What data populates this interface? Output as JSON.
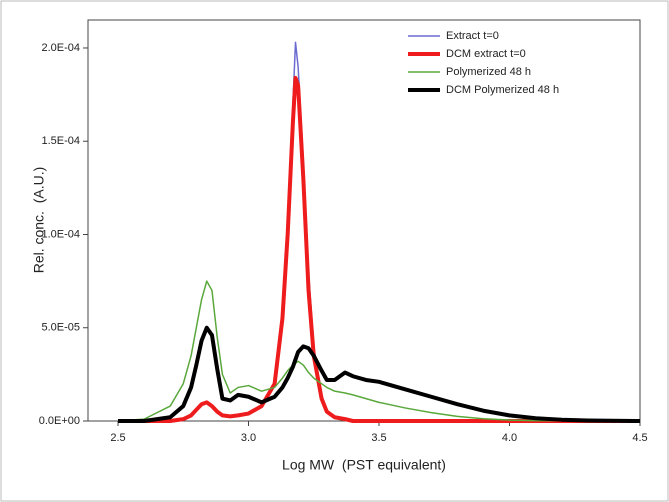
{
  "chart_data": {
    "type": "line",
    "x_label": "Log MW  (PST equivalent)",
    "y_label": "Rel. conc.  (A.U.)",
    "xlim": [
      2.385,
      4.5
    ],
    "ylim": [
      0,
      0.000215
    ],
    "xticks": [
      2.5,
      {
        "value": 3,
        "label": "3.0"
      },
      3.5,
      {
        "value": 4,
        "label": "4.0"
      },
      4.5
    ],
    "yticks": [
      {
        "value": 0,
        "label": "0.0E+00"
      },
      {
        "value": 5e-05,
        "label": "5.0E-05"
      },
      {
        "value": 0.0001,
        "label": "1.0E-04"
      },
      {
        "value": 0.00015,
        "label": "1.5E-04"
      },
      {
        "value": 0.0002,
        "label": "2.0E-04"
      }
    ],
    "legend": "upper-right",
    "x": [
      2.5,
      2.6,
      2.7,
      2.75,
      2.78,
      2.8,
      2.82,
      2.84,
      2.86,
      2.88,
      2.9,
      2.93,
      2.96,
      3.0,
      3.05,
      3.1,
      3.13,
      3.15,
      3.17,
      3.18,
      3.19,
      3.21,
      3.23,
      3.25,
      3.28,
      3.3,
      3.33,
      3.37,
      3.4,
      3.45,
      3.5,
      3.6,
      3.7,
      3.8,
      3.9,
      4.0,
      4.1,
      4.2,
      4.3,
      4.5
    ],
    "series": [
      {
        "name": "Extract t=0",
        "color": "#6b6bd0",
        "width": 1.5,
        "values": [
          0,
          0,
          0,
          1e-06,
          3e-06,
          6e-06,
          9e-06,
          1e-05,
          8e-06,
          5e-06,
          3e-06,
          2.5e-06,
          3e-06,
          4e-06,
          8e-06,
          2e-05,
          5.5e-05,
          0.0001,
          0.00017,
          0.000203,
          0.00019,
          0.00014,
          8e-05,
          4e-05,
          1.4e-05,
          6e-06,
          2e-06,
          1e-06,
          0,
          0,
          0,
          0,
          0,
          0,
          0,
          0,
          0,
          0,
          0,
          0
        ]
      },
      {
        "name": "DCM extract t=0",
        "color": "#ee1c1c",
        "width": 4,
        "values": [
          0,
          0,
          0,
          1e-06,
          3e-06,
          6e-06,
          9e-06,
          1e-05,
          8e-06,
          5e-06,
          3e-06,
          2.5e-06,
          3e-06,
          4e-06,
          8e-06,
          2e-05,
          5.5e-05,
          0.0001,
          0.00016,
          0.000184,
          0.00018,
          0.00013,
          7e-05,
          3.5e-05,
          1.2e-05,
          5e-06,
          2e-06,
          1e-06,
          0,
          0,
          0,
          0,
          0,
          0,
          0,
          0,
          0,
          0,
          0,
          0
        ]
      },
      {
        "name": "Polymerized 48 h",
        "color": "#5aa83c",
        "width": 1.5,
        "values": [
          0,
          1e-06,
          8e-06,
          2e-05,
          3.5e-05,
          5e-05,
          6.5e-05,
          7.5e-05,
          7e-05,
          4.5e-05,
          2.5e-05,
          1.5e-05,
          1.8e-05,
          1.9e-05,
          1.6e-05,
          1.8e-05,
          2.3e-05,
          2.7e-05,
          3e-05,
          3.1e-05,
          3.2e-05,
          3e-05,
          2.6e-05,
          2.3e-05,
          2e-05,
          1.8e-05,
          1.6e-05,
          1.5e-05,
          1.4e-05,
          1.2e-05,
          1e-05,
          7e-06,
          4.5e-06,
          2.5e-06,
          1.2e-06,
          5e-07,
          2e-07,
          1e-07,
          0,
          0
        ]
      },
      {
        "name": "DCM Polymerized 48 h",
        "color": "#000000",
        "width": 4,
        "values": [
          0,
          0,
          2e-06,
          8e-06,
          1.8e-05,
          3e-05,
          4.3e-05,
          5e-05,
          4.6e-05,
          2.8e-05,
          1.2e-05,
          1.1e-05,
          1.4e-05,
          1.3e-05,
          1e-05,
          1.3e-05,
          1.8e-05,
          2.3e-05,
          2.9e-05,
          3.3e-05,
          3.7e-05,
          4e-05,
          3.9e-05,
          3.5e-05,
          2.7e-05,
          2.2e-05,
          2.2e-05,
          2.6e-05,
          2.4e-05,
          2.2e-05,
          2.1e-05,
          1.7e-05,
          1.3e-05,
          9e-06,
          5.5e-06,
          3e-06,
          1.5e-06,
          7e-07,
          3e-07,
          0
        ]
      }
    ]
  }
}
